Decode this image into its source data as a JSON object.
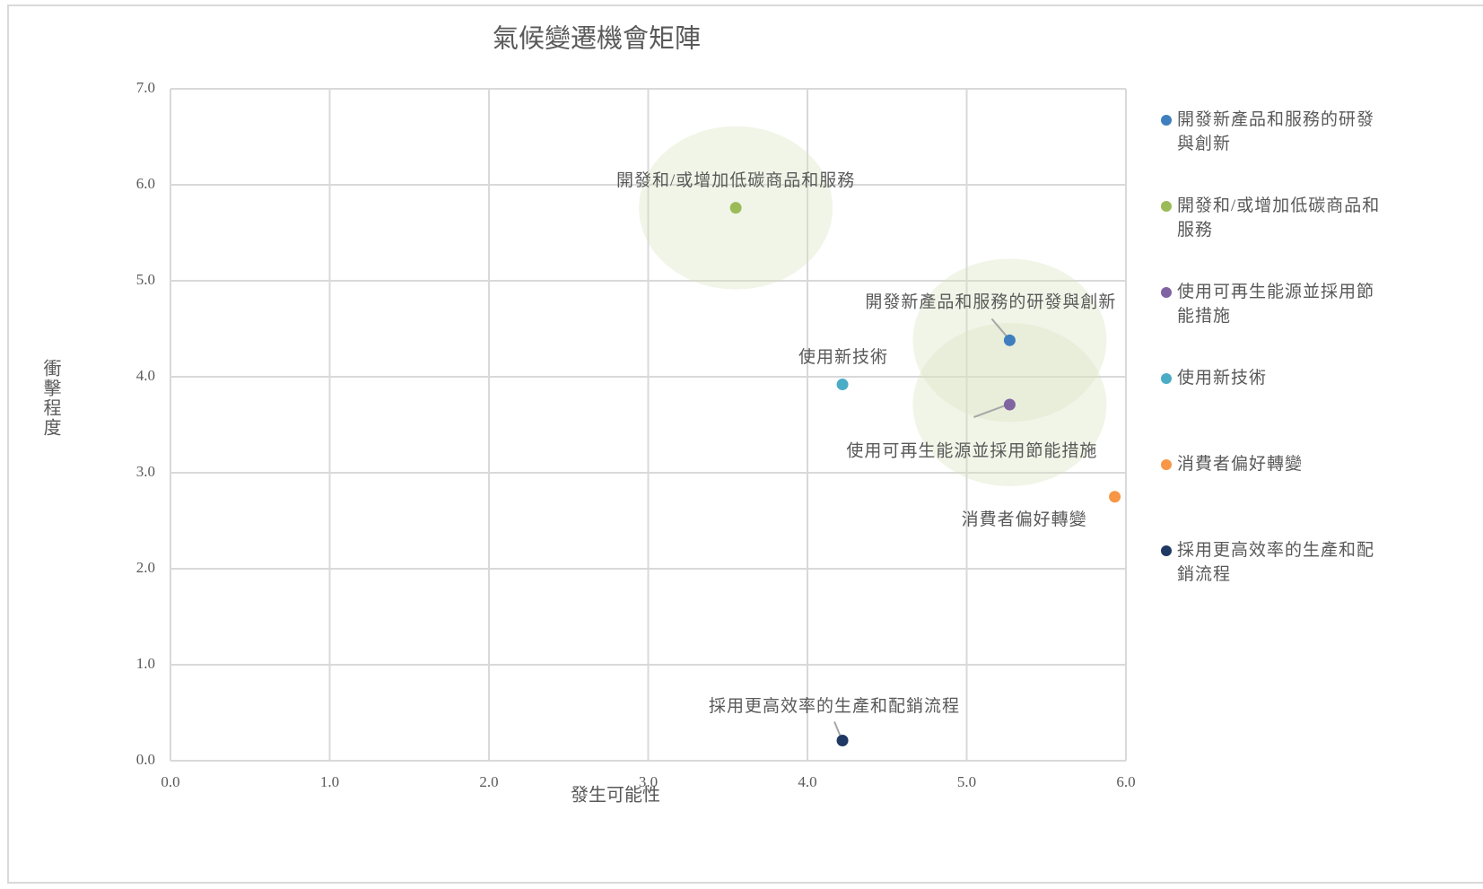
{
  "chart_data": {
    "type": "scatter",
    "title": "氣候變遷機會矩陣",
    "x_label": "發生可能性",
    "y_label": "衝擊程度",
    "xlim": [
      0,
      6
    ],
    "ylim": [
      0,
      7
    ],
    "xticks": [
      {
        "value": 0,
        "label": "0.0"
      },
      {
        "value": 1,
        "label": "1.0"
      },
      {
        "value": 2,
        "label": "2.0"
      },
      {
        "value": 3,
        "label": "3.0"
      },
      {
        "value": 4,
        "label": "4.0"
      },
      {
        "value": 5,
        "label": "5.0"
      },
      {
        "value": 6,
        "label": "6.0"
      }
    ],
    "yticks": [
      {
        "value": 0,
        "label": "0.0"
      },
      {
        "value": 1,
        "label": "1.0"
      },
      {
        "value": 2,
        "label": "2.0"
      },
      {
        "value": 3,
        "label": "3.0"
      },
      {
        "value": 4,
        "label": "4.0"
      },
      {
        "value": 5,
        "label": "5.0"
      },
      {
        "value": 6,
        "label": "6.0"
      },
      {
        "value": 7,
        "label": "7.0"
      }
    ],
    "grid": true,
    "legend": "right",
    "series": [
      {
        "name": "開發新產品和服務的研發與創新",
        "color": "#3f7fbf",
        "x": [
          5.27
        ],
        "values": [
          4.38
        ],
        "highlight": true
      },
      {
        "name": "開發和/或增加低碳商品和服務",
        "color": "#9bbb59",
        "x": [
          3.55
        ],
        "values": [
          5.76
        ],
        "highlight": true
      },
      {
        "name": "使用可再生能源並採用節能措施",
        "color": "#8064a2",
        "x": [
          5.27
        ],
        "values": [
          3.71
        ],
        "highlight": true
      },
      {
        "name": "使用新技術",
        "color": "#4bacc6",
        "x": [
          4.22
        ],
        "values": [
          3.92
        ]
      },
      {
        "name": "消費者偏好轉變",
        "color": "#f79646",
        "x": [
          5.93
        ],
        "values": [
          2.75
        ]
      },
      {
        "name": "採用更高效率的生產和配銷流程",
        "color": "#1f3864",
        "x": [
          4.22
        ],
        "values": [
          0.21
        ]
      }
    ]
  }
}
